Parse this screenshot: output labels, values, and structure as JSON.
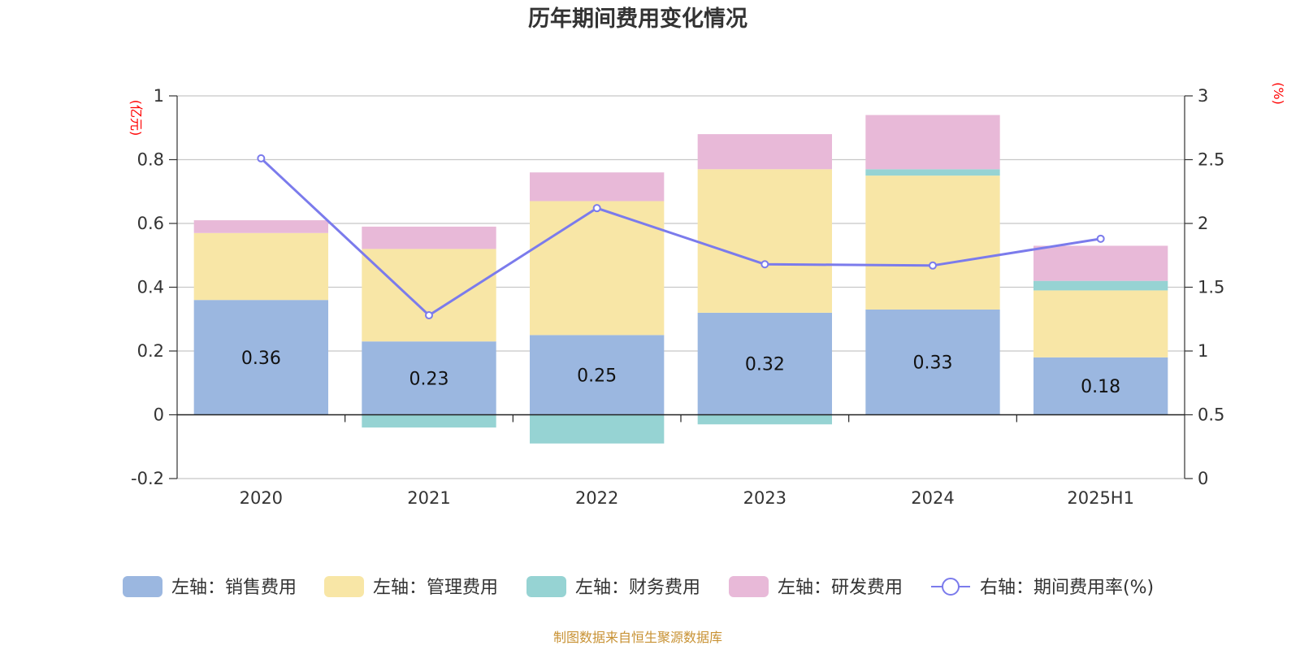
{
  "chart_data": {
    "type": "bar",
    "title": "历年期间费用变化情况",
    "categories": [
      "2020",
      "2021",
      "2022",
      "2023",
      "2024",
      "2025H1"
    ],
    "left_axis": {
      "unit": "(亿元)",
      "ylim": [
        -0.2,
        1
      ],
      "ticks": [
        "1",
        "0.8",
        "0.6",
        "0.4",
        "0.2",
        "0",
        "-0.2"
      ]
    },
    "right_axis": {
      "unit": "(%)",
      "ylim": [
        0,
        3
      ],
      "ticks": [
        "3",
        "2.5",
        "2",
        "1.5",
        "1",
        "0.5",
        "0"
      ]
    },
    "series": [
      {
        "name": "左轴：销售费用",
        "kind": "bar",
        "stack": true,
        "color": "#9bb7e0",
        "values": [
          0.36,
          0.23,
          0.25,
          0.32,
          0.33,
          0.18
        ],
        "labels": [
          "0.36",
          "0.23",
          "0.25",
          "0.32",
          "0.33",
          "0.18"
        ]
      },
      {
        "name": "左轴：管理费用",
        "kind": "bar",
        "stack": true,
        "color": "#f8e6a6",
        "values": [
          0.21,
          0.29,
          0.42,
          0.45,
          0.42,
          0.21
        ]
      },
      {
        "name": "左轴：财务费用",
        "kind": "bar",
        "stack": true,
        "color": "#96d3d3",
        "values": [
          0.0,
          -0.04,
          -0.09,
          -0.03,
          0.02,
          0.03
        ]
      },
      {
        "name": "左轴：研发费用",
        "kind": "bar",
        "stack": true,
        "color": "#e8b9d8",
        "values": [
          0.04,
          0.07,
          0.09,
          0.11,
          0.17,
          0.11
        ]
      },
      {
        "name": "右轴：期间费用率(%)",
        "kind": "line",
        "axis": "right",
        "color": "#7b7bec",
        "values": [
          2.51,
          1.28,
          2.12,
          1.68,
          1.67,
          1.88
        ]
      }
    ],
    "grid": true,
    "legend_position": "bottom"
  },
  "source": "制图数据来自恒生聚源数据库"
}
